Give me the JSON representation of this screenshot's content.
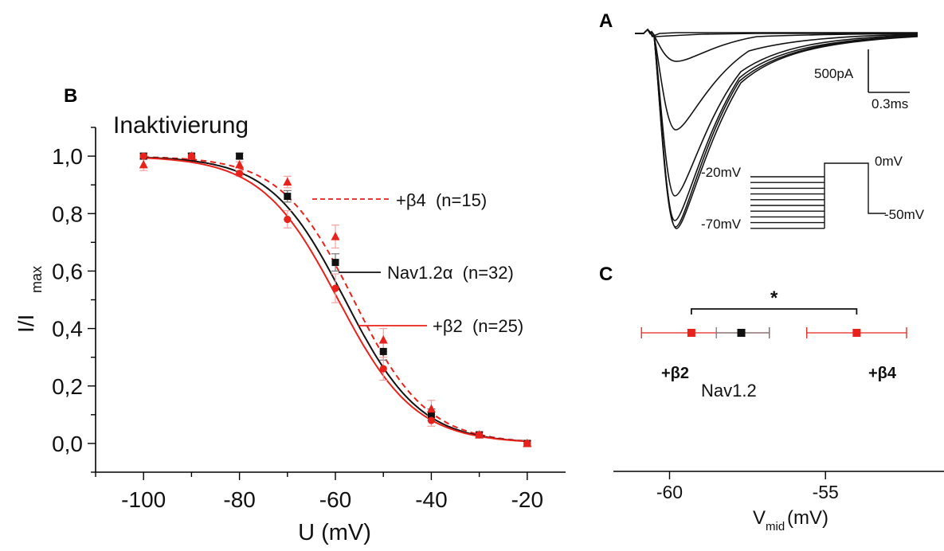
{
  "colors": {
    "black": "#111111",
    "red": "#e8211a",
    "gray": "#777777",
    "pink": "#f3a0a0"
  },
  "panel_letters": {
    "a": "A",
    "b": "B",
    "c": "C"
  },
  "panel_b": {
    "annotation": "Inaktivierung",
    "y_label_main": "I/I",
    "y_label_sub": "max",
    "x_label": "U (mV)",
    "legend": {
      "beta4": "+β4  (n=15)",
      "nav": "Nav1.2α  (n=32)",
      "beta2": "+β2  (n=25)"
    }
  },
  "panel_a": {
    "current_scale": "500pA",
    "time_scale": "0.3ms",
    "voltage_labels": {
      "v_minus20": "-20mV",
      "v_minus70": "-70mV",
      "v_zero": "0mV",
      "v_minus50": "-50mV"
    }
  },
  "panel_c": {
    "significance": "*",
    "x_label_main": "V",
    "x_label_sub": "mid",
    "x_label_unit": "(mV)",
    "labels": {
      "beta2": "+β2",
      "nav": "Nav1.2",
      "beta4": "+β4"
    }
  },
  "chart_data": [
    {
      "id": "inactivation",
      "type": "line",
      "title": "Inaktivierung",
      "xlabel": "U (mV)",
      "ylabel": "I/Imax",
      "xlim": [
        -110,
        -12
      ],
      "ylim": [
        -0.1,
        1.1
      ],
      "x_ticks": [
        -100,
        -80,
        -60,
        -40,
        -20
      ],
      "y_ticks": [
        0.0,
        0.2,
        0.4,
        0.6,
        0.8,
        1.0
      ],
      "x_tick_labels": [
        "-100",
        "-80",
        "-60",
        "-40",
        "-20"
      ],
      "y_tick_labels": [
        "0,0",
        "0,2",
        "0,4",
        "0,6",
        "0,8",
        "1,0"
      ],
      "series": [
        {
          "name": "Nav1.2α (n=32)",
          "color": "#111111",
          "marker": "square",
          "line_style": "solid",
          "x": [
            -100,
            -90,
            -80,
            -70,
            -60,
            -50,
            -40,
            -30,
            -20
          ],
          "y": [
            1.0,
            1.0,
            1.0,
            0.86,
            0.63,
            0.32,
            0.1,
            0.03,
            0.0
          ],
          "err": [
            0.01,
            0.01,
            0.01,
            0.02,
            0.03,
            0.03,
            0.02,
            0.01,
            0.01
          ],
          "fit": {
            "v_half": -58.0,
            "k": 7.8
          }
        },
        {
          "name": "+β4 (n=15)",
          "color": "#e8211a",
          "marker": "triangle",
          "line_style": "dashed",
          "x": [
            -100,
            -90,
            -80,
            -70,
            -60,
            -50,
            -40,
            -30,
            -20
          ],
          "y": [
            0.97,
            1.0,
            0.97,
            0.91,
            0.72,
            0.36,
            0.12,
            0.03,
            0.0
          ],
          "err": [
            0.02,
            0.01,
            0.01,
            0.02,
            0.04,
            0.04,
            0.03,
            0.01,
            0.01
          ],
          "fit": {
            "v_half": -56.2,
            "k": 7.6
          }
        },
        {
          "name": "+β2 (n=25)",
          "color": "#e8211a",
          "marker": "circle",
          "line_style": "solid",
          "x": [
            -100,
            -90,
            -80,
            -70,
            -60,
            -50,
            -40,
            -30,
            -20
          ],
          "y": [
            1.0,
            1.0,
            0.94,
            0.78,
            0.54,
            0.26,
            0.08,
            0.03,
            0.0
          ],
          "err": [
            0.01,
            0.01,
            0.01,
            0.03,
            0.05,
            0.04,
            0.02,
            0.01,
            0.01
          ],
          "fit": {
            "v_half": -59.4,
            "k": 8.0
          }
        }
      ]
    },
    {
      "id": "vmid",
      "type": "scatter",
      "xlabel": "Vmid(mV)",
      "xlim": [
        -61.8,
        -51.2
      ],
      "x_ticks": [
        -60,
        -55
      ],
      "x_tick_labels": [
        "-60",
        "-55"
      ],
      "series": [
        {
          "name": "+β2",
          "color": "#e8211a",
          "x": [
            -59.3
          ],
          "err_left": 1.6,
          "err_right": 2.5
        },
        {
          "name": "Nav1.2",
          "color": "#111111",
          "x": [
            -57.7
          ],
          "err_left": 0.8,
          "err_right": 0.9
        },
        {
          "name": "+β4",
          "color": "#e8211a",
          "x": [
            -54.0
          ],
          "err_left": 1.6,
          "err_right": 1.6
        }
      ],
      "significance": {
        "from": -59.3,
        "to": -54.0,
        "label": "*"
      }
    }
  ]
}
